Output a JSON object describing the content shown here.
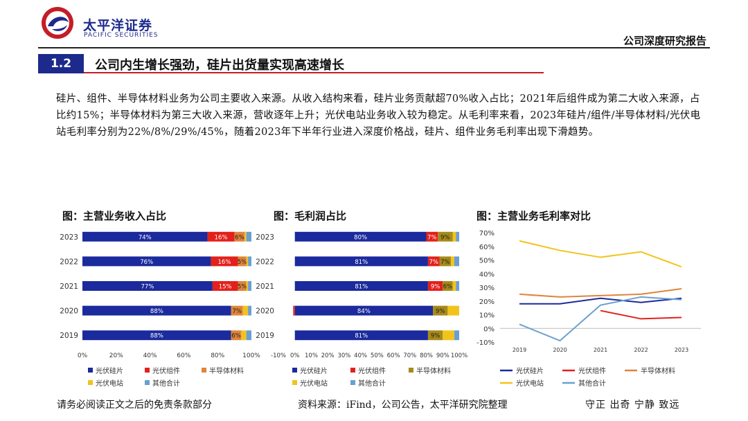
{
  "header": {
    "brand_cn": "太平洋证券",
    "brand_en": "PACIFIC SECURITIES",
    "report_type": "公司深度研究报告"
  },
  "section": {
    "number": "1.2",
    "title": "公司内生增长强劲，硅片出货量实现高速增长"
  },
  "body_text": "硅片、组件、半导体材料业务为公司主要收入来源。从收入结构来看，硅片业务贡献超70%收入占比；2021年后组件成为第二大收入来源，占比约15%；半导体材料为第三大收入来源，营收逐年上升；光伏电站业务收入较为稳定。从毛利率来看，2023年硅片/组件/半导体材料/光伏电站毛利率分别为22%/8%/29%/45%，随着2023年下半年行业进入深度价格战，硅片、组件业务毛利率出现下滑趋势。",
  "charts": {
    "revenue_title": "图：主营业务收入占比",
    "profit_title": "图：毛利润占比",
    "margin_title": "图：主营业务毛利率对比"
  },
  "legend": {
    "wafer": "光伏硅片",
    "module": "光伏组件",
    "semi": "半导体材料",
    "station": "光伏电站",
    "other": "其他合计"
  },
  "colors": {
    "wafer": "#1b2a9c",
    "module": "#e3201b",
    "semi": "#e0843a",
    "semi_profit": "#a68a1a",
    "station": "#f2c31c",
    "other": "#6a9fd0",
    "brand": "#1d2a8c",
    "accent_red": "#c41d27"
  },
  "footer": {
    "disclaimer": "请务必阅读正文之后的免责条款部分",
    "source": "资料来源：iFind，公司公告，太平洋研究院整理",
    "motto": "守正  出奇  宁静  致远"
  },
  "chart_data": [
    {
      "type": "bar",
      "orientation": "horizontal-stacked",
      "title": "图：主营业务收入占比",
      "categories": [
        "2023",
        "2022",
        "2021",
        "2020",
        "2019"
      ],
      "xlim": [
        0,
        100
      ],
      "xticks": [
        "0%",
        "20%",
        "40%",
        "60%",
        "80%",
        "100%"
      ],
      "legend": "bottom",
      "series": [
        {
          "name": "光伏硅片",
          "values": [
            74,
            76,
            77,
            88,
            88
          ],
          "labels": [
            "74%",
            "76%",
            "77%",
            "88%",
            "88%"
          ]
        },
        {
          "name": "光伏组件",
          "values": [
            16,
            16,
            15,
            0,
            0
          ],
          "labels": [
            "16%",
            "16%",
            "15%",
            "",
            ""
          ]
        },
        {
          "name": "半导体材料",
          "values": [
            6,
            5,
            5,
            7,
            6
          ],
          "labels": [
            "6%",
            "5%",
            "5%",
            "7%",
            "6%"
          ]
        },
        {
          "name": "光伏电站",
          "values": [
            1,
            1,
            1,
            3,
            3
          ],
          "labels": [
            "",
            "",
            "",
            "",
            ""
          ]
        },
        {
          "name": "其他合计",
          "values": [
            3,
            2,
            2,
            2,
            3
          ],
          "labels": [
            "",
            "",
            "",
            "",
            ""
          ]
        }
      ]
    },
    {
      "type": "bar",
      "orientation": "horizontal-stacked",
      "title": "图：毛利润占比",
      "categories": [
        "2023",
        "2022",
        "2021",
        "2020",
        "2019"
      ],
      "xlim": [
        -10,
        100
      ],
      "xticks": [
        "-10%",
        "0%",
        "10%",
        "20%",
        "30%",
        "40%",
        "50%",
        "60%",
        "70%",
        "80%",
        "90%",
        "100%"
      ],
      "legend": "bottom",
      "series": [
        {
          "name": "光伏硅片",
          "values": [
            80,
            81,
            81,
            84,
            81
          ],
          "labels": [
            "80%",
            "81%",
            "81%",
            "84%",
            "81%"
          ]
        },
        {
          "name": "光伏组件",
          "values": [
            7,
            7,
            9,
            -1,
            0
          ],
          "labels": [
            "7%",
            "7%",
            "9%",
            "",
            ""
          ]
        },
        {
          "name": "半导体材料",
          "values": [
            9,
            7,
            6,
            9,
            9
          ],
          "labels": [
            "9%",
            "7%",
            "6%",
            "9%",
            "9%"
          ]
        },
        {
          "name": "光伏电站",
          "values": [
            2,
            2,
            2,
            7,
            7
          ],
          "labels": [
            "",
            "",
            "",
            "",
            ""
          ]
        },
        {
          "name": "其他合计",
          "values": [
            2,
            3,
            2,
            0,
            3
          ],
          "labels": [
            "",
            "",
            "",
            "",
            ""
          ]
        }
      ]
    },
    {
      "type": "line",
      "title": "图：主营业务毛利率对比",
      "x": [
        "2019",
        "2020",
        "2021",
        "2022",
        "2023"
      ],
      "ylim": [
        -10,
        70
      ],
      "yticks": [
        "-10%",
        "0%",
        "10%",
        "20%",
        "30%",
        "40%",
        "50%",
        "60%",
        "70%"
      ],
      "legend": "bottom",
      "series": [
        {
          "name": "光伏硅片",
          "values": [
            18,
            18,
            22,
            19,
            22
          ]
        },
        {
          "name": "光伏组件",
          "values": [
            null,
            null,
            13,
            7,
            8
          ]
        },
        {
          "name": "半导体材料",
          "values": [
            25,
            23,
            24,
            25,
            29
          ]
        },
        {
          "name": "光伏电站",
          "values": [
            64,
            57,
            52,
            56,
            45
          ]
        },
        {
          "name": "其他合计",
          "values": [
            3,
            -9,
            17,
            23,
            21
          ]
        }
      ]
    }
  ]
}
